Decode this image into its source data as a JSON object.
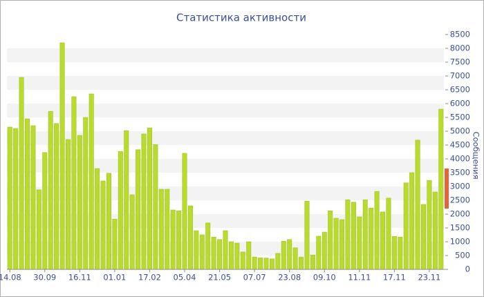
{
  "chart_data": {
    "type": "bar",
    "title": "Статистика активности",
    "y_label": "Сообщения",
    "categories": [
      "14.08",
      null,
      null,
      null,
      null,
      null,
      "30.09",
      null,
      null,
      null,
      null,
      null,
      "16.11",
      null,
      null,
      null,
      null,
      null,
      "01.01",
      null,
      null,
      null,
      null,
      null,
      "17.02",
      null,
      null,
      null,
      null,
      null,
      "05.04",
      null,
      null,
      null,
      null,
      null,
      "21.05",
      null,
      null,
      null,
      null,
      null,
      "07.07",
      null,
      null,
      null,
      null,
      null,
      "23.08",
      null,
      null,
      null,
      null,
      null,
      "09.10",
      null,
      null,
      null,
      null,
      null,
      "11.11",
      null,
      null,
      null,
      null,
      null,
      "17.11",
      null,
      null,
      null,
      null,
      null,
      "23.11",
      null,
      null
    ],
    "values": [
      5150,
      5100,
      6950,
      5450,
      5200,
      2880,
      4230,
      5720,
      5280,
      8200,
      4700,
      6250,
      4850,
      5500,
      6350,
      3650,
      3200,
      3480,
      1820,
      4270,
      5020,
      2700,
      4330,
      4900,
      5120,
      4520,
      2900,
      2900,
      2150,
      2120,
      4200,
      2300,
      1400,
      1250,
      1680,
      1170,
      1080,
      1400,
      1000,
      950,
      630,
      1000,
      450,
      420,
      410,
      380,
      580,
      1020,
      1080,
      780,
      450,
      2470,
      520,
      1200,
      1350,
      2120,
      1850,
      1800,
      2520,
      2430,
      1900,
      2520,
      2220,
      2820,
      2080,
      2580,
      1190,
      1170,
      3130,
      3500,
      4680,
      2350,
      3220,
      2800,
      5800
    ],
    "color": "#b8db2e",
    "marker": {
      "low": 2200,
      "high": 3650,
      "color": "#e8603c"
    },
    "ylim": [
      0,
      8500
    ],
    "yticks": [
      0,
      500,
      1000,
      1500,
      2000,
      2500,
      3000,
      3500,
      4000,
      4500,
      5000,
      5500,
      6000,
      6500,
      7000,
      7500,
      8000,
      8500
    ],
    "grid": "banded"
  }
}
